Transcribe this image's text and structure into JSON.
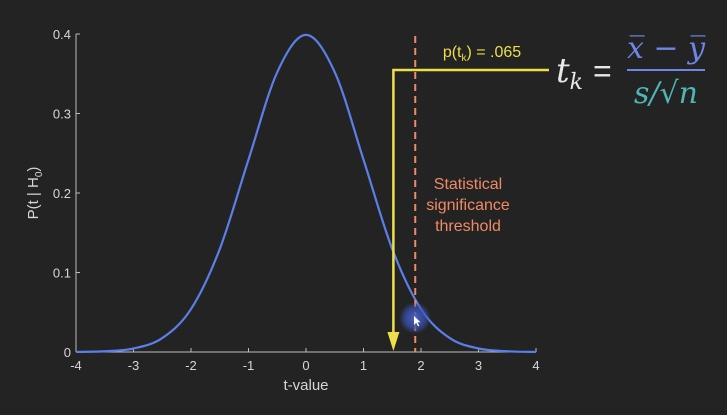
{
  "chart_data": {
    "type": "line",
    "xlabel": "t-value",
    "ylabel": "P(t | H",
    "ylabel_sub": "0",
    "ylabel_tail": ")",
    "xlim": [
      -4,
      4
    ],
    "ylim": [
      0,
      0.4
    ],
    "x_ticks": [
      -4,
      -3,
      -2,
      -1,
      0,
      1,
      2,
      3,
      4
    ],
    "x_tick_labels": [
      "-4",
      "-3",
      "-2",
      "-1",
      "0",
      "1",
      "2",
      "3",
      "4"
    ],
    "y_ticks": [
      0,
      0.1,
      0.2,
      0.3,
      0.4
    ],
    "y_tick_labels": [
      "0",
      "0.1",
      "0.2",
      "0.3",
      "0.4"
    ],
    "series": [
      {
        "x": [
          -4,
          -3.5,
          -3,
          -2.5,
          -2,
          -1.5,
          -1,
          -0.5,
          0,
          0.5,
          1,
          1.5,
          2,
          2.5,
          3,
          3.5,
          4
        ],
        "y": [
          0.0001,
          0.0009,
          0.0044,
          0.0175,
          0.054,
          0.1295,
          0.242,
          0.352,
          0.3989,
          0.352,
          0.242,
          0.1295,
          0.054,
          0.0175,
          0.0044,
          0.0009,
          0.0001
        ],
        "color": "#5b7fe8"
      }
    ],
    "threshold": {
      "x": 1.9,
      "color": "#f08a66",
      "label_lines": [
        "Statistical",
        "significance",
        "threshold"
      ]
    },
    "observed": {
      "x": 1.52,
      "color": "#ecdf4a",
      "label_prefix": "p(t",
      "label_sub": "k",
      "label_suffix": ") = .065"
    },
    "formula": {
      "lhs": "t",
      "lhs_sub": "k",
      "equals": "=",
      "numerator": "x̅ − y̅",
      "denominator": "s/√n",
      "text_color": "#e8e8e8",
      "numerator_color": "#6f86e6",
      "denominator_color": "#4fb6b6"
    }
  }
}
